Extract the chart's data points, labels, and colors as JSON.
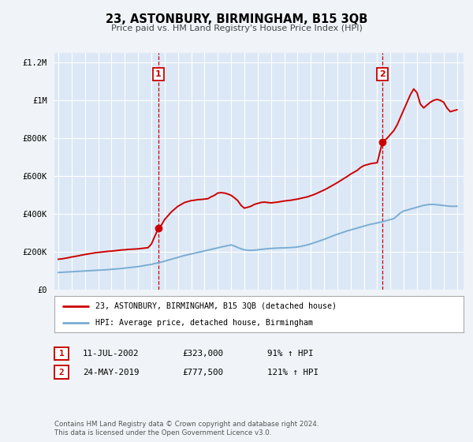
{
  "title": "23, ASTONBURY, BIRMINGHAM, B15 3QB",
  "subtitle": "Price paid vs. HM Land Registry's House Price Index (HPI)",
  "background_color": "#f0f4f8",
  "plot_bg_color": "#dce8f5",
  "grid_color": "#ffffff",
  "ylim": [
    0,
    1250000
  ],
  "xlim_start": 1994.7,
  "xlim_end": 2025.5,
  "yticks": [
    0,
    200000,
    400000,
    600000,
    800000,
    1000000,
    1200000
  ],
  "ytick_labels": [
    "£0",
    "£200K",
    "£400K",
    "£600K",
    "£800K",
    "£1M",
    "£1.2M"
  ],
  "xticks": [
    1995,
    1996,
    1997,
    1998,
    1999,
    2000,
    2001,
    2002,
    2003,
    2004,
    2005,
    2006,
    2007,
    2008,
    2009,
    2010,
    2011,
    2012,
    2013,
    2014,
    2015,
    2016,
    2017,
    2018,
    2019,
    2020,
    2021,
    2022,
    2023,
    2024,
    2025
  ],
  "red_line_color": "#cc0000",
  "blue_line_color": "#7aadd4",
  "marker1_x": 2002.53,
  "marker1_y": 323000,
  "marker2_x": 2019.39,
  "marker2_y": 777500,
  "vline1_x": 2002.53,
  "vline2_x": 2019.39,
  "legend_label_red": "23, ASTONBURY, BIRMINGHAM, B15 3QB (detached house)",
  "legend_label_blue": "HPI: Average price, detached house, Birmingham",
  "table_row1": [
    "1",
    "11-JUL-2002",
    "£323,000",
    "91% ↑ HPI"
  ],
  "table_row2": [
    "2",
    "24-MAY-2019",
    "£777,500",
    "121% ↑ HPI"
  ],
  "footer_text": "Contains HM Land Registry data © Crown copyright and database right 2024.\nThis data is licensed under the Open Government Licence v3.0.",
  "red_x": [
    1995.0,
    1995.25,
    1995.5,
    1995.75,
    1996.0,
    1996.25,
    1996.5,
    1996.75,
    1997.0,
    1997.25,
    1997.5,
    1997.75,
    1998.0,
    1998.25,
    1998.5,
    1998.75,
    1999.0,
    1999.25,
    1999.5,
    1999.75,
    2000.0,
    2000.25,
    2000.5,
    2000.75,
    2001.0,
    2001.25,
    2001.5,
    2001.75,
    2002.0,
    2002.25,
    2002.53,
    2002.75,
    2003.0,
    2003.25,
    2003.5,
    2003.75,
    2004.0,
    2004.25,
    2004.5,
    2004.75,
    2005.0,
    2005.25,
    2005.5,
    2005.75,
    2006.0,
    2006.25,
    2006.5,
    2006.75,
    2007.0,
    2007.25,
    2007.5,
    2007.75,
    2008.0,
    2008.25,
    2008.5,
    2008.75,
    2009.0,
    2009.25,
    2009.5,
    2009.75,
    2010.0,
    2010.25,
    2010.5,
    2010.75,
    2011.0,
    2011.25,
    2011.5,
    2011.75,
    2012.0,
    2012.25,
    2012.5,
    2012.75,
    2013.0,
    2013.25,
    2013.5,
    2013.75,
    2014.0,
    2014.25,
    2014.5,
    2014.75,
    2015.0,
    2015.25,
    2015.5,
    2015.75,
    2016.0,
    2016.25,
    2016.5,
    2016.75,
    2017.0,
    2017.25,
    2017.5,
    2017.75,
    2018.0,
    2018.25,
    2018.5,
    2018.75,
    2019.0,
    2019.39,
    2019.75,
    2020.0,
    2020.25,
    2020.5,
    2020.75,
    2021.0,
    2021.25,
    2021.5,
    2021.75,
    2022.0,
    2022.25,
    2022.5,
    2022.75,
    2023.0,
    2023.25,
    2023.5,
    2023.75,
    2024.0,
    2024.25,
    2024.5,
    2024.75,
    2025.0
  ],
  "red_y": [
    160000,
    162000,
    165000,
    168000,
    172000,
    175000,
    178000,
    182000,
    185000,
    188000,
    191000,
    194000,
    196000,
    198000,
    200000,
    202000,
    203000,
    205000,
    207000,
    209000,
    210000,
    212000,
    213000,
    214000,
    215000,
    217000,
    219000,
    221000,
    240000,
    280000,
    323000,
    340000,
    370000,
    390000,
    410000,
    425000,
    440000,
    450000,
    460000,
    465000,
    470000,
    472000,
    475000,
    476000,
    478000,
    480000,
    490000,
    498000,
    510000,
    512000,
    510000,
    505000,
    498000,
    485000,
    470000,
    445000,
    430000,
    435000,
    440000,
    450000,
    455000,
    460000,
    462000,
    460000,
    458000,
    460000,
    462000,
    465000,
    468000,
    470000,
    472000,
    475000,
    478000,
    482000,
    486000,
    490000,
    496000,
    502000,
    510000,
    518000,
    526000,
    535000,
    545000,
    555000,
    565000,
    576000,
    587000,
    598000,
    610000,
    620000,
    630000,
    645000,
    655000,
    660000,
    665000,
    668000,
    670000,
    777500,
    800000,
    820000,
    840000,
    870000,
    910000,
    950000,
    990000,
    1030000,
    1060000,
    1040000,
    980000,
    960000,
    975000,
    990000,
    1000000,
    1005000,
    1000000,
    990000,
    960000,
    940000,
    945000,
    950000
  ],
  "blue_x": [
    1995.0,
    1995.25,
    1995.5,
    1995.75,
    1996.0,
    1996.25,
    1996.5,
    1996.75,
    1997.0,
    1997.25,
    1997.5,
    1997.75,
    1998.0,
    1998.25,
    1998.5,
    1998.75,
    1999.0,
    1999.25,
    1999.5,
    1999.75,
    2000.0,
    2000.25,
    2000.5,
    2000.75,
    2001.0,
    2001.25,
    2001.5,
    2001.75,
    2002.0,
    2002.25,
    2002.5,
    2002.75,
    2003.0,
    2003.25,
    2003.5,
    2003.75,
    2004.0,
    2004.25,
    2004.5,
    2004.75,
    2005.0,
    2005.25,
    2005.5,
    2005.75,
    2006.0,
    2006.25,
    2006.5,
    2006.75,
    2007.0,
    2007.25,
    2007.5,
    2007.75,
    2008.0,
    2008.25,
    2008.5,
    2008.75,
    2009.0,
    2009.25,
    2009.5,
    2009.75,
    2010.0,
    2010.25,
    2010.5,
    2010.75,
    2011.0,
    2011.25,
    2011.5,
    2011.75,
    2012.0,
    2012.25,
    2012.5,
    2012.75,
    2013.0,
    2013.25,
    2013.5,
    2013.75,
    2014.0,
    2014.25,
    2014.5,
    2014.75,
    2015.0,
    2015.25,
    2015.5,
    2015.75,
    2016.0,
    2016.25,
    2016.5,
    2016.75,
    2017.0,
    2017.25,
    2017.5,
    2017.75,
    2018.0,
    2018.25,
    2018.5,
    2018.75,
    2019.0,
    2019.25,
    2019.5,
    2019.75,
    2020.0,
    2020.25,
    2020.5,
    2020.75,
    2021.0,
    2021.25,
    2021.5,
    2021.75,
    2022.0,
    2022.25,
    2022.5,
    2022.75,
    2023.0,
    2023.25,
    2023.5,
    2023.75,
    2024.0,
    2024.25,
    2024.5,
    2024.75,
    2025.0
  ],
  "blue_y": [
    90000,
    91000,
    92000,
    93000,
    94000,
    95000,
    96000,
    97000,
    98000,
    99000,
    100000,
    101000,
    102000,
    103000,
    104000,
    105000,
    107000,
    108000,
    110000,
    111000,
    113000,
    115000,
    117000,
    119000,
    121000,
    124000,
    127000,
    130000,
    133000,
    137000,
    141000,
    145000,
    150000,
    155000,
    160000,
    165000,
    170000,
    175000,
    180000,
    184000,
    188000,
    192000,
    196000,
    200000,
    204000,
    208000,
    212000,
    216000,
    220000,
    225000,
    228000,
    232000,
    236000,
    230000,
    222000,
    215000,
    210000,
    208000,
    207000,
    208000,
    210000,
    212000,
    214000,
    216000,
    217000,
    218000,
    219000,
    220000,
    220000,
    221000,
    222000,
    223000,
    225000,
    228000,
    232000,
    236000,
    241000,
    247000,
    253000,
    259000,
    265000,
    272000,
    279000,
    286000,
    292000,
    298000,
    304000,
    310000,
    315000,
    320000,
    325000,
    330000,
    335000,
    340000,
    345000,
    348000,
    352000,
    356000,
    360000,
    365000,
    370000,
    375000,
    390000,
    405000,
    415000,
    420000,
    425000,
    430000,
    435000,
    440000,
    445000,
    448000,
    450000,
    450000,
    448000,
    446000,
    444000,
    442000,
    440000,
    440000,
    440000
  ]
}
